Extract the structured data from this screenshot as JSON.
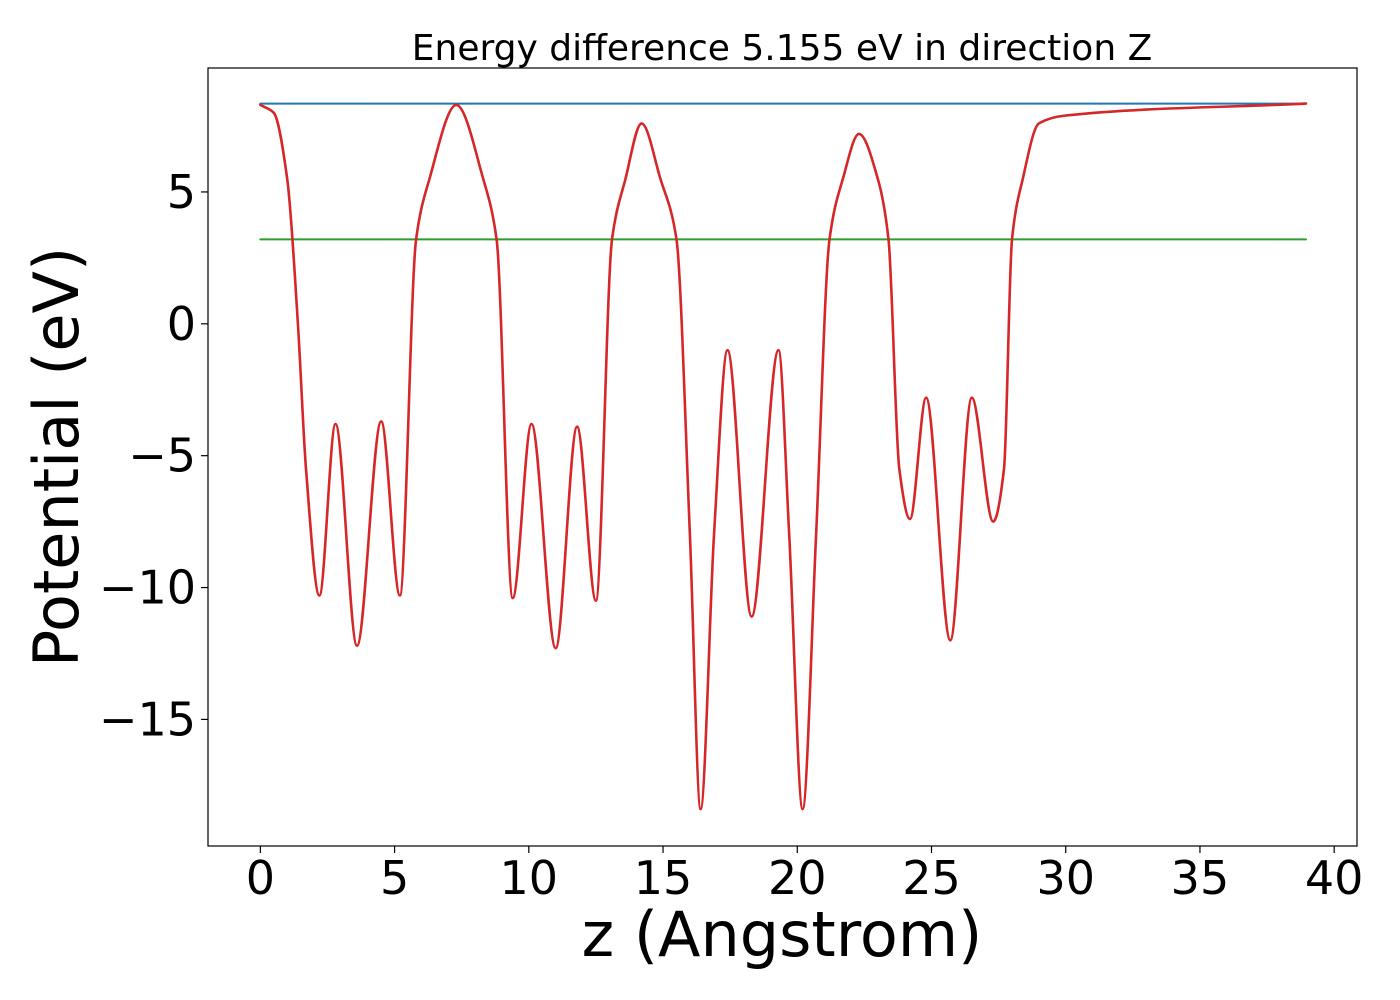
{
  "chart_data": {
    "type": "line",
    "title": "Energy difference 5.155 eV in direction Z",
    "xlabel": "z (Angstrom)",
    "ylabel": "Potential (eV)",
    "xlim": [
      -1.95,
      40.85
    ],
    "ylim": [
      -19.8,
      9.7
    ],
    "xticks": [
      0,
      5,
      10,
      15,
      20,
      25,
      30,
      35,
      40
    ],
    "yticks": [
      -15,
      -10,
      -5,
      0,
      5
    ],
    "xtick_labels": [
      "0",
      "5",
      "10",
      "15",
      "20",
      "25",
      "30",
      "35",
      "40"
    ],
    "ytick_labels": [
      "−15",
      "−10",
      "−5",
      "0",
      "5"
    ],
    "grid": false,
    "series": [
      {
        "color": "#1f77b4",
        "x": [
          0,
          38.95
        ],
        "y": [
          8.35,
          8.35
        ]
      },
      {
        "color": "#2ca02c",
        "x": [
          0,
          38.95
        ],
        "y": [
          3.2,
          3.2
        ]
      },
      {
        "color": "#d62728",
        "x": [
          0,
          0.5,
          1.0,
          1.4,
          1.7,
          2.2,
          2.8,
          3.6,
          4.5,
          5.2,
          5.8,
          6.3,
          7.3,
          8.3,
          8.8,
          9.4,
          10.1,
          11.0,
          11.8,
          12.5,
          13.1,
          13.6,
          14.2,
          14.9,
          15.5,
          16.0,
          16.4,
          16.9,
          17.4,
          18.3,
          19.3,
          19.7,
          20.2,
          20.7,
          21.2,
          21.7,
          22.3,
          23.0,
          23.4,
          23.8,
          24.2,
          24.8,
          25.7,
          26.5,
          27.3,
          27.7,
          28.0,
          28.4,
          29.0,
          30.0,
          38.95
        ],
        "y": [
          8.3,
          8.0,
          5.5,
          0.0,
          -5.5,
          -10.3,
          -3.8,
          -12.2,
          -3.7,
          -10.3,
          3.2,
          5.5,
          8.3,
          5.5,
          3.2,
          -10.4,
          -3.8,
          -12.3,
          -3.9,
          -10.5,
          3.2,
          5.5,
          7.6,
          5.5,
          3.2,
          -8.0,
          -18.4,
          -8.0,
          -1.0,
          -11.1,
          -1.0,
          -8.0,
          -18.4,
          -8.0,
          3.2,
          5.5,
          7.2,
          5.5,
          3.2,
          -5.5,
          -7.4,
          -2.8,
          -12.0,
          -2.8,
          -7.5,
          -5.5,
          3.2,
          5.5,
          7.6,
          7.9,
          8.35
        ]
      }
    ]
  }
}
